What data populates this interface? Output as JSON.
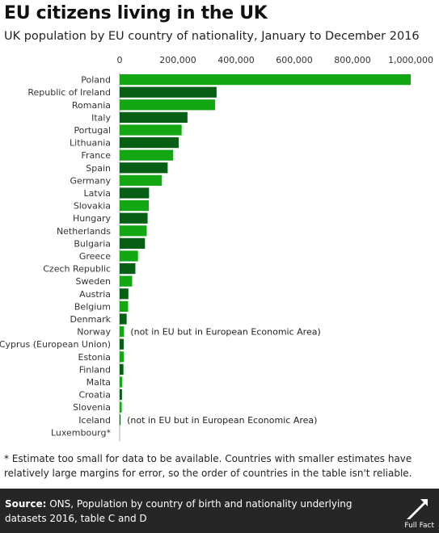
{
  "header": {
    "title": "EU citizens living in the UK",
    "subtitle": "UK population by EU country of nationality, January to December 2016"
  },
  "chart_data": {
    "type": "bar",
    "orientation": "horizontal",
    "title": "EU citizens living in the UK",
    "subtitle": "UK population by EU country of nationality, January to December 2016",
    "xlabel": "",
    "ylabel": "",
    "xlim": [
      0,
      1000000
    ],
    "x_ticks": [
      0,
      200000,
      400000,
      600000,
      800000,
      1000000
    ],
    "x_tick_labels": [
      "0",
      "200,000",
      "400,000",
      "600,000",
      "800,000",
      "1,000,000"
    ],
    "axis_position": "top",
    "grid": false,
    "legend": "none",
    "colors": {
      "light": "#13a813",
      "dark": "#075e15"
    },
    "categories": [
      "Poland",
      "Republic of Ireland",
      "Romania",
      "Italy",
      "Portugal",
      "Lithuania",
      "France",
      "Spain",
      "Germany",
      "Latvia",
      "Slovakia",
      "Hungary",
      "Netherlands",
      "Bulgaria",
      "Greece",
      "Czech Republic",
      "Sweden",
      "Austria",
      "Belgium",
      "Denmark",
      "Norway",
      "Cyprus (European Union)",
      "Estonia",
      "Finland",
      "Malta",
      "Croatia",
      "Slovenia",
      "Iceland",
      "Luxembourg*"
    ],
    "values": [
      1000000,
      333000,
      328000,
      233000,
      213000,
      203000,
      184000,
      165000,
      145000,
      101000,
      100000,
      96000,
      93000,
      87000,
      63000,
      54000,
      43000,
      30000,
      29000,
      24000,
      15000,
      14000,
      14000,
      13000,
      9000,
      8000,
      7000,
      3000,
      0
    ],
    "bar_shades": [
      "light",
      "dark",
      "light",
      "dark",
      "light",
      "dark",
      "light",
      "dark",
      "light",
      "dark",
      "light",
      "dark",
      "light",
      "dark",
      "light",
      "dark",
      "light",
      "dark",
      "light",
      "dark",
      "light",
      "dark",
      "light",
      "dark",
      "light",
      "dark",
      "light",
      "dark",
      "light"
    ],
    "annotations": [
      {
        "category": "Norway",
        "text": "(not in EU but in European Economic Area)"
      },
      {
        "category": "Iceland",
        "text": "(not in EU but in European Economic Area)"
      }
    ]
  },
  "footnote": "* Estimate too small for data to be available. Countries with smaller estimates have relatively large margins for error, so the order of countries in the table isn't reliable.",
  "source": {
    "label": "Source:",
    "text": " ONS, Population by country of birth and nationality underlying datasets 2016, table C and D"
  },
  "logo": {
    "name": "Full Fact",
    "text": "Full Fact",
    "icon": "full-fact-logo-icon"
  }
}
